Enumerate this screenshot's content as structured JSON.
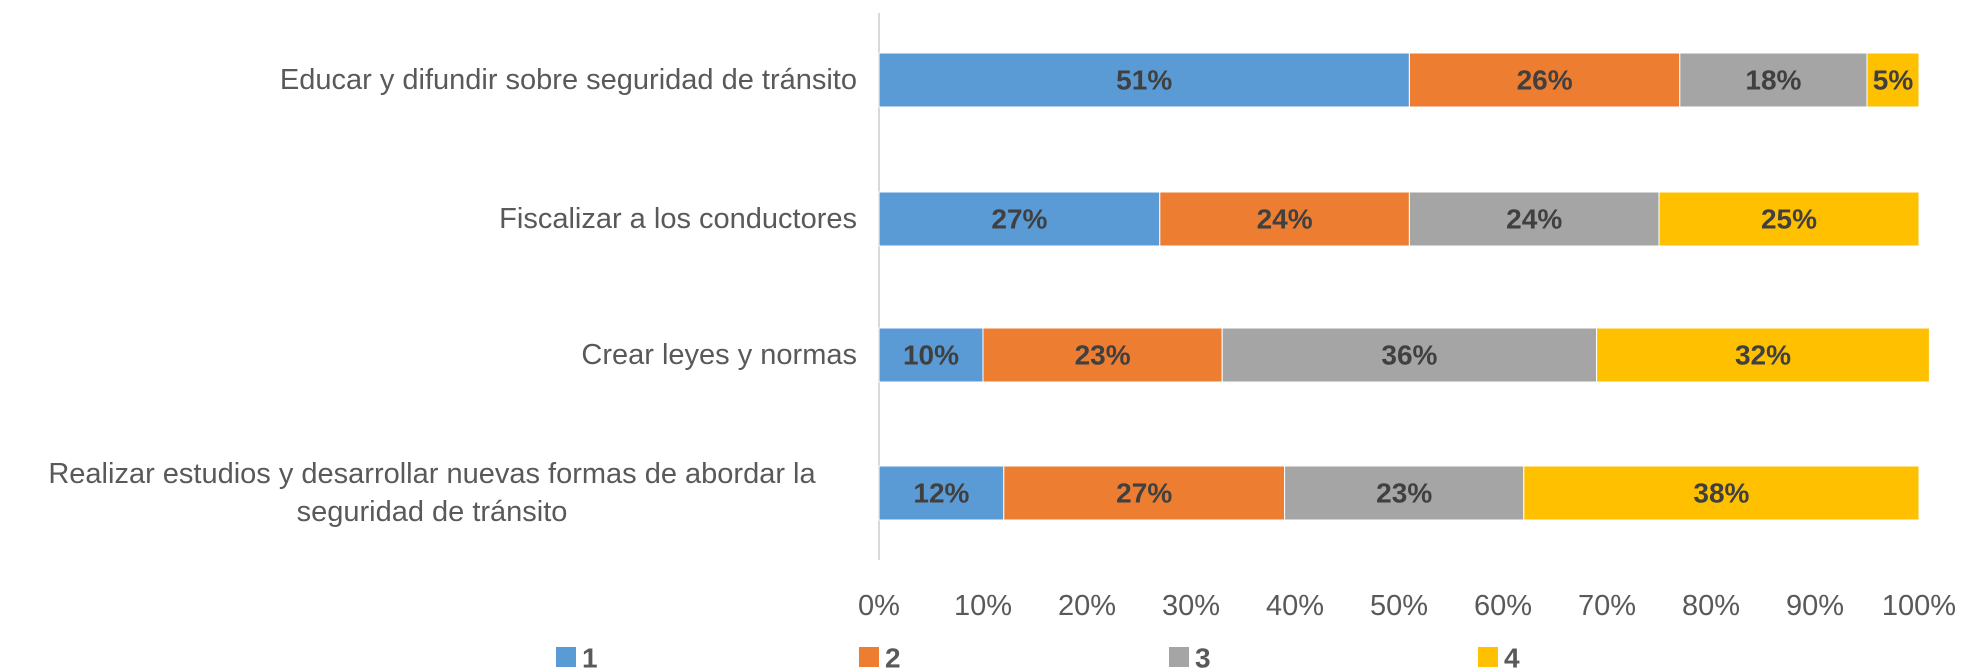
{
  "chart_data": {
    "type": "stacked_barh",
    "categories": [
      "Educar y difundir sobre seguridad de tránsito",
      "Fiscalizar a los conductores",
      "Crear leyes y normas",
      "Realizar estudios y desarrollar nuevas formas de abordar la seguridad de tránsito"
    ],
    "series": [
      {
        "name": "1",
        "color": "#5b9bd5",
        "values": [
          51,
          27,
          10,
          12
        ],
        "value_labels": [
          "51%",
          "27%",
          "10%",
          "12%"
        ]
      },
      {
        "name": "2",
        "color": "#ed7d31",
        "values": [
          26,
          24,
          23,
          27
        ],
        "value_labels": [
          "26%",
          "24%",
          "23%",
          "27%"
        ]
      },
      {
        "name": "3",
        "color": "#a5a5a5",
        "values": [
          18,
          24,
          36,
          23
        ],
        "value_labels": [
          "18%",
          "24%",
          "36%",
          "23%"
        ]
      },
      {
        "name": "4",
        "color": "#ffc000",
        "values": [
          5,
          25,
          32,
          38
        ],
        "value_labels": [
          "5%",
          "25%",
          "32%",
          "38%"
        ]
      }
    ],
    "xlim": [
      0,
      100
    ],
    "xticks": [
      {
        "value": 0,
        "label": "0%"
      },
      {
        "value": 10,
        "label": "10%"
      },
      {
        "value": 20,
        "label": "20%"
      },
      {
        "value": 30,
        "label": "30%"
      },
      {
        "value": 40,
        "label": "40%"
      },
      {
        "value": 50,
        "label": "50%"
      },
      {
        "value": 60,
        "label": "60%"
      },
      {
        "value": 70,
        "label": "70%"
      },
      {
        "value": 80,
        "label": "80%"
      },
      {
        "value": 90,
        "label": "90%"
      },
      {
        "value": 100,
        "label": "100%"
      }
    ],
    "legend": "bottom"
  }
}
